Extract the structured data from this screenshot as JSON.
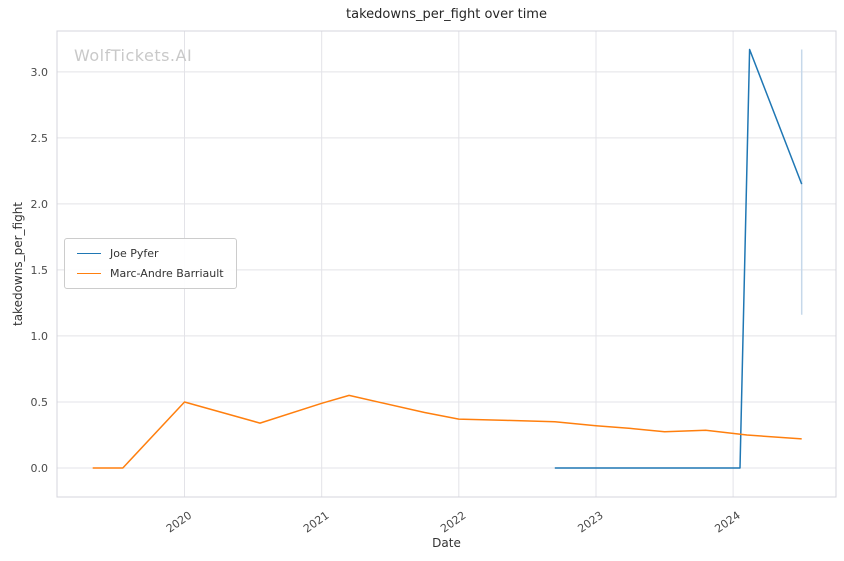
{
  "watermark": "WolfTickets.AI",
  "chart_data": {
    "type": "line",
    "title": "takedowns_per_fight over time",
    "xlabel": "Date",
    "ylabel": "takedowns_per_fight",
    "xlim": [
      2019.07,
      2024.75
    ],
    "ylim": [
      -0.22,
      3.31
    ],
    "grid": true,
    "legend_position": "center-left",
    "xticks": [
      {
        "value": 2020,
        "label": "2020"
      },
      {
        "value": 2021,
        "label": "2021"
      },
      {
        "value": 2022,
        "label": "2022"
      },
      {
        "value": 2023,
        "label": "2023"
      },
      {
        "value": 2024,
        "label": "2024"
      }
    ],
    "yticks": [
      {
        "value": 0.0,
        "label": "0.0"
      },
      {
        "value": 0.5,
        "label": "0.5"
      },
      {
        "value": 1.0,
        "label": "1.0"
      },
      {
        "value": 1.5,
        "label": "1.5"
      },
      {
        "value": 2.0,
        "label": "2.0"
      },
      {
        "value": 2.5,
        "label": "2.5"
      },
      {
        "value": 3.0,
        "label": "3.0"
      }
    ],
    "series": [
      {
        "name": "Joe Pyfer",
        "color": "#1f77b4",
        "x": [
          2022.7,
          2024.05,
          2024.12,
          2024.5
        ],
        "y": [
          0.0,
          0.0,
          3.17,
          2.15
        ]
      },
      {
        "name": "Marc-Andre Barriault",
        "color": "#ff7f0e",
        "x": [
          2019.33,
          2019.55,
          2020.0,
          2020.55,
          2021.0,
          2021.2,
          2021.75,
          2022.0,
          2022.35,
          2022.7,
          2023.0,
          2023.25,
          2023.5,
          2023.8,
          2024.1,
          2024.5
        ],
        "y": [
          0.0,
          0.0,
          0.5,
          0.34,
          0.49,
          0.55,
          0.42,
          0.37,
          0.36,
          0.35,
          0.32,
          0.3,
          0.275,
          0.285,
          0.25,
          0.22
        ]
      }
    ],
    "error_bars": [
      {
        "series": "Joe Pyfer",
        "x": 2024.5,
        "y_low": 1.16,
        "y_high": 3.17,
        "color": "#c6d8ea"
      }
    ]
  }
}
